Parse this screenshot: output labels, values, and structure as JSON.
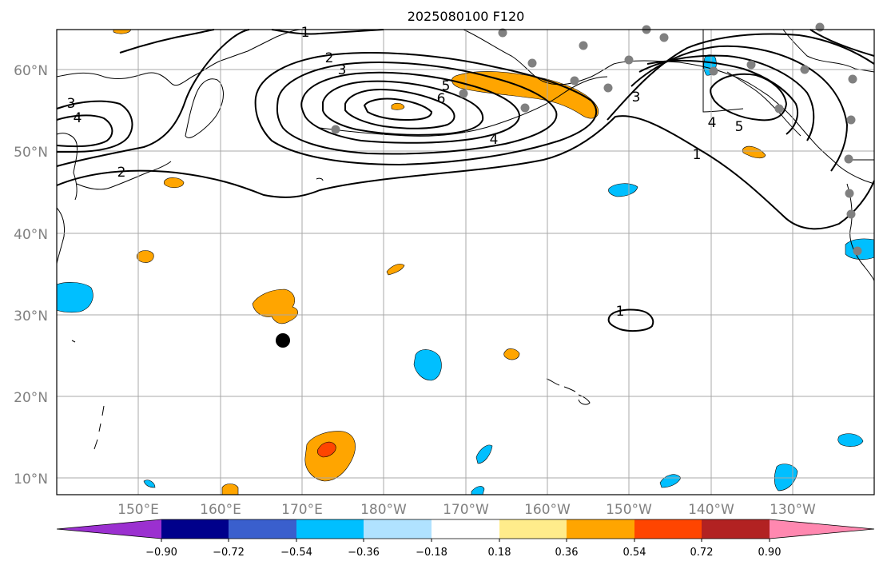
{
  "title": "2025080100 F120",
  "map": {
    "lat_labels": [
      "60°N",
      "50°N",
      "40°N",
      "30°N",
      "20°N",
      "10°N"
    ],
    "lon_labels": [
      "150°E",
      "160°E",
      "170°E",
      "180°W",
      "170°W",
      "160°W",
      "150°W",
      "140°W",
      "130°W"
    ],
    "contour_labels": [
      "3",
      "4",
      "2",
      "1",
      "2",
      "3",
      "5",
      "6",
      "4",
      "3",
      "4",
      "5",
      "1",
      "1"
    ]
  },
  "colorbar": {
    "ticks": [
      "−0.90",
      "−0.72",
      "−0.54",
      "−0.36",
      "−0.18",
      "0.18",
      "0.36",
      "0.54",
      "0.72",
      "0.90"
    ],
    "colors": [
      "#9b30d0",
      "#00008b",
      "#3a5fcd",
      "#00bfff",
      "#b0e2ff",
      "#ffffff",
      "#ffec8b",
      "#ffa500",
      "#ff4500",
      "#b22222",
      "#ff88b0"
    ]
  }
}
